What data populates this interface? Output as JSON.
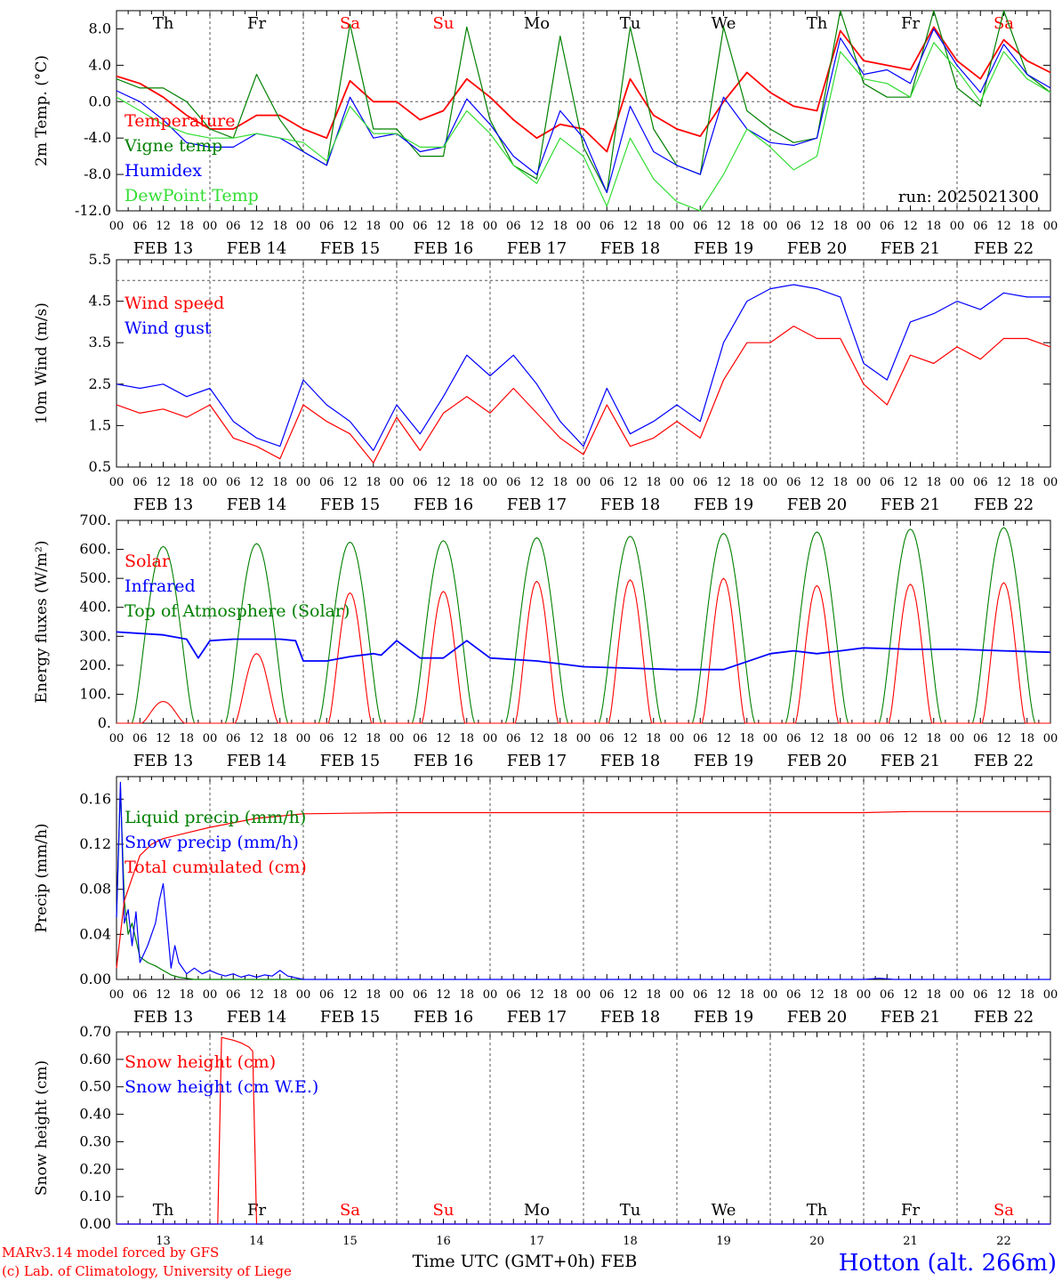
{
  "run_label": "run: 2025021300",
  "footer": {
    "credit_line1": "MARv3.14 model forced by GFS",
    "credit_line2": "(c) Lab. of Climatology, University of Liege",
    "axis_title": "Time UTC (GMT+0h) FEB",
    "station": "Hotton (alt. 266m)"
  },
  "days": {
    "weekdays": [
      "Th",
      "Fr",
      "Sa",
      "Su",
      "Mo",
      "Tu",
      "We",
      "Th",
      "Fr",
      "Sa"
    ],
    "weekend_flags": [
      false,
      false,
      true,
      true,
      false,
      false,
      false,
      false,
      false,
      true
    ],
    "date_labels": [
      "FEB 13",
      "FEB 14",
      "FEB 15",
      "FEB 16",
      "FEB 17",
      "FEB 18",
      "FEB 19",
      "FEB 20",
      "FEB 21",
      "FEB 22"
    ],
    "day_numbers": [
      "13",
      "14",
      "15",
      "16",
      "17",
      "18",
      "19",
      "20",
      "21",
      "22"
    ],
    "hour_ticks": [
      "00",
      "06",
      "12",
      "18"
    ],
    "final_tick": "00"
  },
  "colors": {
    "red": "#ff0000",
    "green": "#008000",
    "blue": "#0000ff",
    "lightgreen": "#33dd33",
    "weekend": "#ff0000"
  },
  "chart_data": [
    {
      "id": "temp",
      "type": "line",
      "ylabel": "2m Temp. (°C)",
      "ylim": [
        -12,
        10
      ],
      "yticks": [
        "8.0",
        "4.0",
        "0.0",
        "-4.0",
        "-8.0",
        "-12.0"
      ],
      "ytick_values": [
        8,
        4,
        0,
        -4,
        -8,
        -12
      ],
      "hline": 0,
      "show_weekdays": true,
      "x_hours": [
        0,
        6,
        12,
        18,
        24,
        30,
        36,
        42,
        48,
        54,
        60,
        66,
        72,
        78,
        84,
        90,
        96,
        102,
        108,
        114,
        120,
        126,
        132,
        138,
        144,
        150,
        156,
        162,
        168,
        174,
        180,
        186,
        192,
        198,
        204,
        210,
        216,
        222,
        228,
        234,
        240
      ],
      "series": [
        {
          "name": "Temperature",
          "color": "red",
          "values": [
            2.8,
            2,
            0.5,
            -1.5,
            -3,
            -3,
            -1.5,
            -1.5,
            -3,
            -4,
            2.3,
            0,
            0,
            -2,
            -1,
            2.5,
            0.5,
            -2,
            -4,
            -2.5,
            -3,
            -5.5,
            2.5,
            -1.5,
            -3,
            -3.8,
            0,
            3.2,
            1,
            -0.5,
            -1,
            7.8,
            4.5,
            4,
            3.5,
            8.2,
            4.5,
            2.5,
            6.8,
            4.5,
            3.2
          ]
        },
        {
          "name": "Vigne temp",
          "color": "green",
          "values": [
            2.5,
            1.5,
            1.5,
            0,
            -3,
            -4,
            3,
            -2,
            -5.5,
            -7,
            8.5,
            -3,
            -3,
            -6,
            -6,
            8.2,
            -2,
            -7,
            -8.5,
            7.2,
            -5,
            -10,
            8.2,
            -3,
            -7,
            -8,
            8.2,
            -1,
            -3,
            -4.5,
            -4,
            10,
            2,
            0.5,
            0.5,
            10,
            1.5,
            -0.5,
            10,
            3,
            1
          ]
        },
        {
          "name": "Humidex",
          "color": "blue",
          "values": [
            1.2,
            0,
            -2,
            -4.5,
            -5,
            -5,
            -3.5,
            -4,
            -5.5,
            -7,
            0.5,
            -4,
            -3.5,
            -5.5,
            -5,
            0.3,
            -2.5,
            -6,
            -8,
            -1,
            -4,
            -10,
            -0.5,
            -5.5,
            -7,
            -8,
            0.5,
            -3,
            -4.5,
            -4.8,
            -4,
            7,
            3,
            3.5,
            2,
            8,
            4,
            1,
            6.3,
            3,
            1.5
          ]
        },
        {
          "name": "DewPoint Temp",
          "color": "lightgreen",
          "values": [
            0.5,
            -1,
            -2.5,
            -3.5,
            -4,
            -4,
            -3.5,
            -4,
            -4.5,
            -6.5,
            -0.5,
            -3.5,
            -3.5,
            -5,
            -5,
            -1,
            -3.5,
            -7,
            -9,
            -4,
            -6,
            -11.5,
            -4,
            -8.5,
            -11,
            -12.5,
            -8,
            -3,
            -5,
            -7.5,
            -6,
            5.5,
            2.5,
            2,
            0.5,
            6.5,
            3.5,
            0,
            5.5,
            2.5,
            1
          ]
        }
      ]
    },
    {
      "id": "wind",
      "type": "line",
      "ylabel": "10m Wind (m/s)",
      "ylim": [
        0.5,
        5.5
      ],
      "yticks": [
        "5.5",
        "4.5",
        "3.5",
        "2.5",
        "1.5",
        "0.5"
      ],
      "ytick_values": [
        5.5,
        4.5,
        3.5,
        2.5,
        1.5,
        0.5
      ],
      "hline": 5.0,
      "show_weekdays": false,
      "x_hours": [
        0,
        6,
        12,
        18,
        24,
        30,
        36,
        42,
        48,
        54,
        60,
        66,
        72,
        78,
        84,
        90,
        96,
        102,
        108,
        114,
        120,
        126,
        132,
        138,
        144,
        150,
        156,
        162,
        168,
        174,
        180,
        186,
        192,
        198,
        204,
        210,
        216,
        222,
        228,
        234,
        240
      ],
      "series": [
        {
          "name": "Wind speed",
          "color": "red",
          "values": [
            2,
            1.8,
            1.9,
            1.7,
            2,
            1.2,
            1,
            0.7,
            2,
            1.6,
            1.3,
            0.6,
            1.7,
            0.9,
            1.8,
            2.2,
            1.8,
            2.4,
            1.8,
            1.2,
            0.8,
            2.0,
            1,
            1.2,
            1.6,
            1.2,
            2.6,
            3.5,
            3.5,
            3.9,
            3.6,
            3.6,
            2.5,
            2,
            3.2,
            3.0,
            3.4,
            3.1,
            3.6,
            3.6,
            3.4
          ]
        },
        {
          "name": "Wind gust",
          "color": "blue",
          "values": [
            2.5,
            2.4,
            2.5,
            2.2,
            2.4,
            1.6,
            1.2,
            1,
            2.6,
            2.0,
            1.6,
            0.9,
            2.0,
            1.3,
            2.2,
            3.2,
            2.7,
            3.2,
            2.5,
            1.6,
            1.0,
            2.4,
            1.3,
            1.6,
            2.0,
            1.6,
            3.5,
            4.5,
            4.8,
            4.9,
            4.8,
            4.6,
            3.0,
            2.6,
            4.0,
            4.2,
            4.5,
            4.3,
            4.7,
            4.6,
            4.6
          ]
        }
      ]
    },
    {
      "id": "energy",
      "type": "line",
      "ylabel": "Energy fluxes (W/m²)",
      "ylim": [
        0,
        700
      ],
      "yticks": [
        "700.",
        "600.",
        "500.",
        "400.",
        "300.",
        "200.",
        "100.",
        "0."
      ],
      "ytick_values": [
        700,
        600,
        500,
        400,
        300,
        200,
        100,
        0
      ],
      "show_weekdays": false,
      "solar_peaks": [
        75,
        240,
        450,
        455,
        490,
        495,
        500,
        475,
        480,
        485
      ],
      "toa_peaks": [
        610,
        620,
        625,
        630,
        640,
        645,
        655,
        660,
        670,
        675
      ],
      "infrared": {
        "x_hours": [
          0,
          12,
          18,
          21,
          24,
          30,
          36,
          42,
          46,
          48,
          54,
          60,
          66,
          68,
          72,
          78,
          84,
          90,
          96,
          108,
          120,
          132,
          144,
          156,
          168,
          174,
          180,
          186,
          192,
          204,
          216,
          228,
          240
        ],
        "values": [
          315,
          305,
          290,
          225,
          285,
          290,
          290,
          290,
          285,
          215,
          215,
          230,
          240,
          235,
          285,
          225,
          225,
          285,
          225,
          215,
          195,
          190,
          185,
          185,
          240,
          250,
          240,
          250,
          260,
          255,
          255,
          250,
          245
        ]
      },
      "series": [
        {
          "name": "Solar",
          "color": "red"
        },
        {
          "name": "Infrared",
          "color": "blue"
        },
        {
          "name": "Top of Atmosphere (Solar)",
          "color": "green"
        }
      ]
    },
    {
      "id": "precip",
      "type": "line",
      "ylabel": "Precip (mm/h)",
      "ylim": [
        0,
        0.18
      ],
      "yticks": [
        "0.16",
        "0.12",
        "0.08",
        "0.04",
        "0.00"
      ],
      "ytick_values": [
        0.16,
        0.12,
        0.08,
        0.04,
        0
      ],
      "show_weekdays": false,
      "series": [
        {
          "name": "Liquid precip (mm/h)",
          "color": "green",
          "x_hours": [
            0,
            1,
            2,
            3,
            4,
            6,
            8,
            10,
            12,
            14,
            16,
            18,
            20,
            24,
            48
          ],
          "values": [
            0.055,
            0.17,
            0.07,
            0.04,
            0.05,
            0.02,
            0.015,
            0.012,
            0.008,
            0.004,
            0.002,
            0.001,
            0,
            0,
            0
          ]
        },
        {
          "name": "Snow precip (mm/h)",
          "color": "blue",
          "x_hours": [
            0,
            1,
            2,
            3,
            4,
            5,
            6,
            8,
            10,
            11,
            12,
            14,
            15,
            16,
            18,
            20,
            22,
            24,
            26,
            28,
            30,
            32,
            34,
            36,
            38,
            40,
            42,
            44,
            48,
            192,
            196,
            200,
            240
          ],
          "values": [
            0.055,
            0.175,
            0.05,
            0.062,
            0.03,
            0.06,
            0.015,
            0.03,
            0.05,
            0.07,
            0.085,
            0.01,
            0.03,
            0.015,
            0.005,
            0.01,
            0.005,
            0.008,
            0.005,
            0.003,
            0.005,
            0.002,
            0.004,
            0.002,
            0.004,
            0.003,
            0.008,
            0.003,
            0,
            0,
            0.001,
            0,
            0
          ]
        },
        {
          "name": "Total cumulated (cm)",
          "color": "red",
          "x_hours": [
            0,
            1,
            2,
            4,
            6,
            9,
            12,
            18,
            24,
            36,
            48,
            72,
            192,
            204,
            240
          ],
          "values": [
            0.01,
            0.04,
            0.07,
            0.09,
            0.11,
            0.12,
            0.125,
            0.13,
            0.135,
            0.143,
            0.147,
            0.148,
            0.148,
            0.149,
            0.149
          ]
        }
      ]
    },
    {
      "id": "snow",
      "type": "line",
      "ylabel": "Snow height (cm)",
      "ylim": [
        0,
        0.7
      ],
      "yticks": [
        "0.70",
        "0.60",
        "0.50",
        "0.40",
        "0.30",
        "0.20",
        "0.10",
        "0.00"
      ],
      "ytick_values": [
        0.7,
        0.6,
        0.5,
        0.4,
        0.3,
        0.2,
        0.1,
        0
      ],
      "show_weekdays": true,
      "weekdays_at_bottom": true,
      "series": [
        {
          "name": "Snow height (cm)",
          "color": "red",
          "x_hours": [
            0,
            26,
            27,
            30,
            32,
            34,
            35,
            36,
            240
          ],
          "values": [
            0,
            0,
            0.68,
            0.67,
            0.66,
            0.645,
            0.63,
            0,
            0
          ]
        },
        {
          "name": "Snow height (cm W.E.)",
          "color": "blue",
          "x_hours": [
            0,
            240
          ],
          "values": [
            0,
            0
          ]
        }
      ]
    }
  ]
}
